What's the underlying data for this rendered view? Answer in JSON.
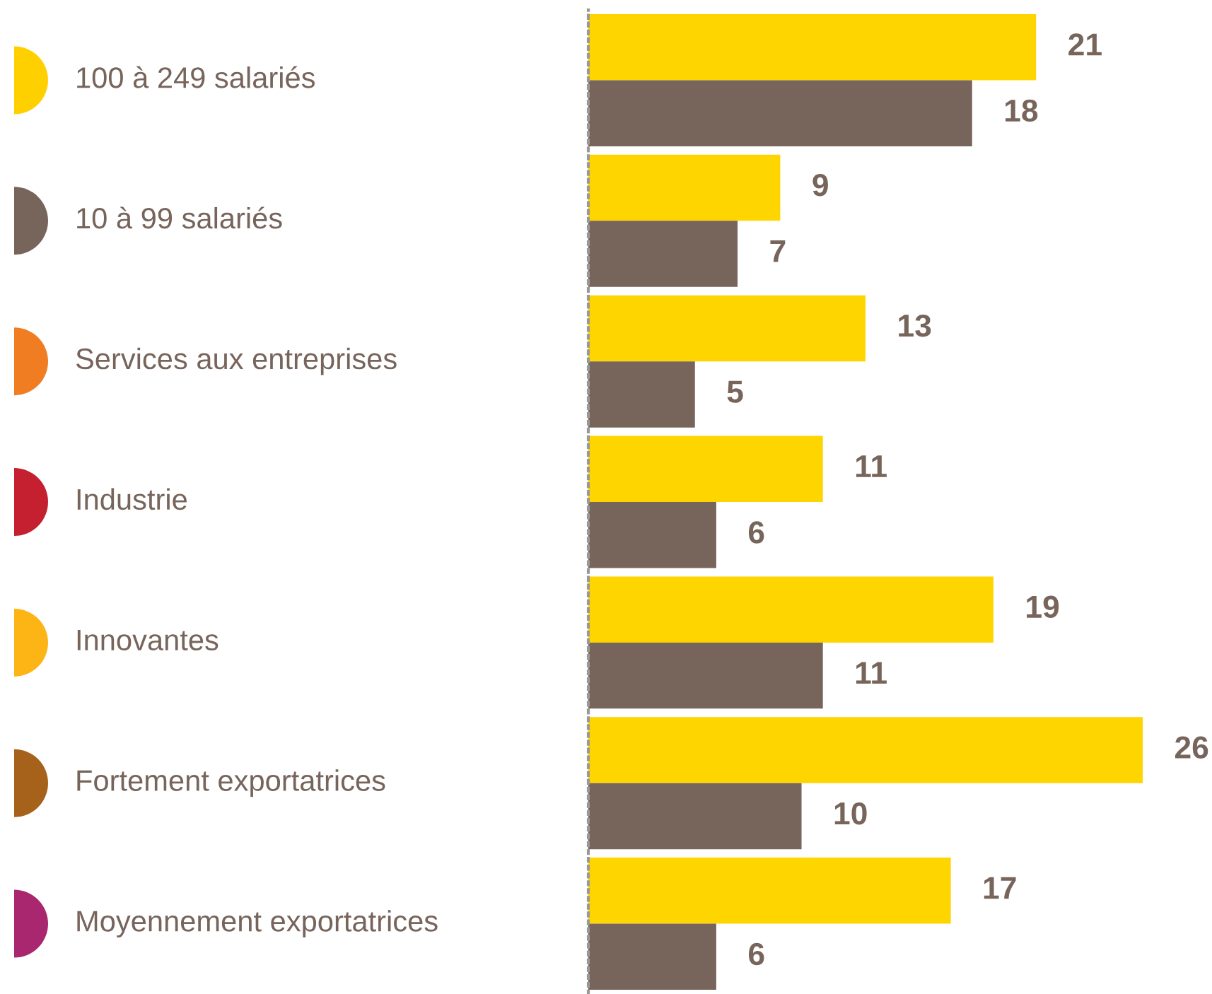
{
  "chart_data": {
    "type": "bar",
    "orientation": "horizontal",
    "data_labels": true,
    "categories": [
      "100 à 249 salariés",
      "10 à 99 salariés",
      "Services aux entreprises",
      "Industrie",
      "Innovantes",
      "Fortement exportatrices",
      "Moyennement exportatrices"
    ],
    "series": [
      {
        "color": "#ffd500",
        "values": [
          21,
          9,
          13,
          11,
          19,
          26,
          17
        ]
      },
      {
        "color": "#77645b",
        "values": [
          18,
          7,
          5,
          6,
          11,
          10,
          6
        ]
      }
    ]
  }
}
